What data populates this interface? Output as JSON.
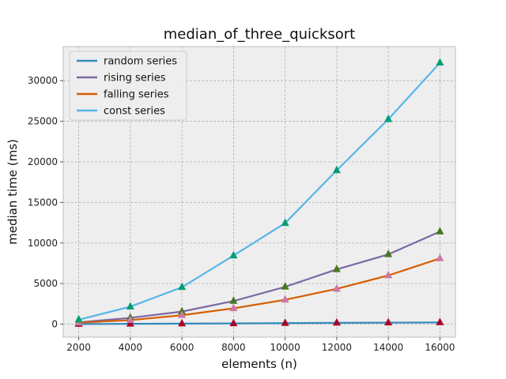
{
  "chart_data": {
    "type": "line",
    "title": "median_of_three_quicksort",
    "xlabel": "elements (n)",
    "ylabel": "median time (ms)",
    "x": [
      2000,
      4000,
      6000,
      8000,
      10000,
      12000,
      14000,
      16000
    ],
    "xlim": [
      1400,
      16600
    ],
    "ylim": [
      -1600,
      34200
    ],
    "xticks": [
      2000,
      4000,
      6000,
      8000,
      10000,
      12000,
      14000,
      16000
    ],
    "yticks": [
      0,
      5000,
      10000,
      15000,
      20000,
      25000,
      30000
    ],
    "grid": true,
    "legend_position": "top-left",
    "series": [
      {
        "name": "random series",
        "color": "#348abd",
        "marker_color": "#a60628",
        "values": [
          15,
          40,
          65,
          95,
          125,
          160,
          185,
          215
        ]
      },
      {
        "name": "rising series",
        "color": "#7a68a6",
        "marker_color": "#467821",
        "values": [
          220,
          780,
          1550,
          2850,
          4600,
          6750,
          8600,
          11400
        ]
      },
      {
        "name": "falling series",
        "color": "#d55e00",
        "marker_color": "#cc79a7",
        "values": [
          180,
          500,
          1100,
          1950,
          3000,
          4350,
          6000,
          8100
        ]
      },
      {
        "name": "const series",
        "color": "#56b4e9",
        "marker_color": "#009e73",
        "values": [
          550,
          2150,
          4550,
          8450,
          12450,
          18950,
          25250,
          32200
        ]
      }
    ]
  }
}
